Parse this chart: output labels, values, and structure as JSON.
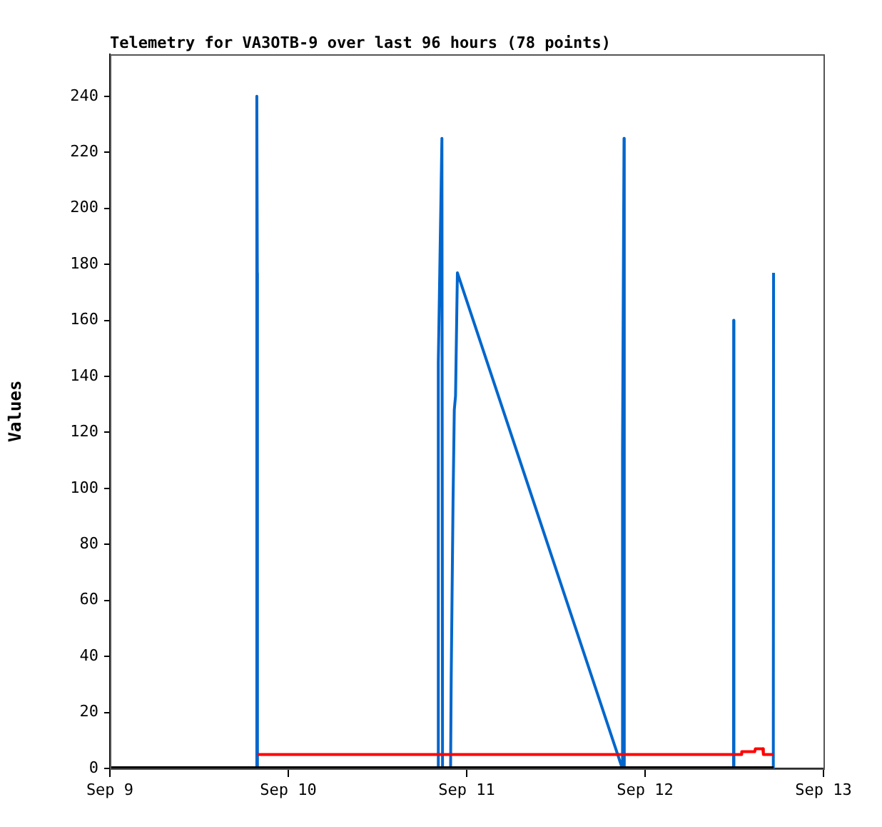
{
  "chart_data": {
    "type": "line",
    "title": "Telemetry for VA3OTB-9 over last 96 hours (78 points)",
    "ylabel": "Values",
    "xlim": [
      "--09-09",
      "--09-13"
    ],
    "xticks": [
      {
        "value": "--09-09",
        "label": "Sep 9"
      },
      {
        "value": "--09-10",
        "label": "Sep 10"
      },
      {
        "value": "--09-11",
        "label": "Sep 11"
      },
      {
        "value": "--09-12",
        "label": "Sep 12"
      },
      {
        "value": "--09-13",
        "label": "Sep 13"
      }
    ],
    "ylim": [
      0,
      255
    ],
    "yticks": [
      0,
      20,
      40,
      60,
      80,
      100,
      120,
      140,
      160,
      180,
      200,
      220,
      240
    ],
    "grid": false,
    "legend": false,
    "marker": "none",
    "line_style": "solid",
    "series": [
      {
        "color": "#0066cc",
        "x": [
          "--09-09T19:45",
          "--09-09T19:46",
          "--09-09T19:50",
          "--09-09T19:51",
          "--09-10T20:10",
          "--09-10T20:11",
          "--09-10T20:40",
          "--09-10T20:45",
          "--09-10T21:50",
          "--09-10T21:55",
          "--09-10T22:10",
          "--09-10T22:20",
          "--09-10T22:30",
          "--09-10T22:45",
          "--09-11T20:56",
          "--09-11T20:58",
          "--09-11T21:10",
          "--09-11T21:12",
          "--09-12T11:54",
          "--09-12T11:55",
          "--09-12T11:57",
          "--09-12T17:15",
          "--09-12T17:17"
        ],
        "values": [
          0,
          240,
          177,
          0,
          0,
          145,
          225,
          0,
          0,
          32,
          96,
          128,
          133,
          177,
          0,
          113,
          225,
          0,
          0,
          160,
          0,
          0,
          177
        ]
      },
      {
        "color": "#ff0000",
        "x": [
          "--09-09T19:50",
          "--09-12T12:55",
          "--09-12T13:00",
          "--09-12T14:45",
          "--09-12T14:50",
          "--09-12T15:50",
          "--09-12T15:55",
          "--09-12T17:17"
        ],
        "values": [
          5,
          5,
          6,
          6,
          7,
          7,
          5,
          5
        ]
      },
      {
        "color": "#000000",
        "x": [
          "--09-09T00:00",
          "--09-12T17:17"
        ],
        "values": [
          0,
          0
        ]
      }
    ]
  }
}
